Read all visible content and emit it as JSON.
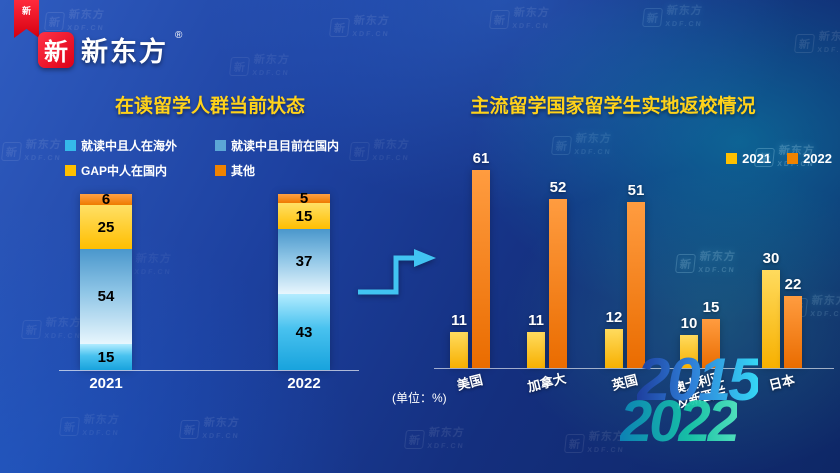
{
  "brand": {
    "seal": "新",
    "name": "新东方",
    "registered": "®"
  },
  "ribbon": {
    "seal": "新"
  },
  "watermark": {
    "seal": "新",
    "line1": "新东方",
    "line2": "XDF.CN"
  },
  "right_chart": {
    "unit_note": "(单位：%)",
    "categories_display": [
      "美国",
      "加拿大",
      "英国",
      "澳大利亚\n及新西兰",
      "日本"
    ]
  },
  "decor": {
    "year_top": "2015",
    "year_bottom": "2022"
  },
  "chart_data": [
    {
      "type": "bar",
      "variant": "stacked",
      "title": "在读留学人群当前状态",
      "categories": [
        "2021",
        "2022"
      ],
      "series": [
        {
          "name": "就读中且人在海外",
          "color": "#35b9ea",
          "values": [
            15,
            43
          ]
        },
        {
          "name": "就读中且目前在国内",
          "color": "#5ba6d6",
          "values": [
            54,
            37
          ]
        },
        {
          "name": "GAP中人在国内",
          "color": "#ffc000",
          "values": [
            25,
            15
          ]
        },
        {
          "name": "其他",
          "color": "#f08300",
          "values": [
            6,
            5
          ]
        }
      ],
      "ylim": [
        0,
        100
      ],
      "legend_position": "top",
      "value_labels": "inside"
    },
    {
      "type": "bar",
      "variant": "grouped",
      "title": "主流留学国家留学生实地返校情况",
      "unit": "%",
      "categories": [
        "美国",
        "加拿大",
        "英国",
        "澳大利亚及新西兰",
        "日本"
      ],
      "series": [
        {
          "name": "2021",
          "color": "#ffc000",
          "values": [
            11,
            11,
            12,
            10,
            30
          ]
        },
        {
          "name": "2022",
          "color": "#f08300",
          "values": [
            61,
            52,
            51,
            15,
            22
          ]
        }
      ],
      "ylim": [
        0,
        65
      ],
      "legend_position": "top-right",
      "value_labels": "above"
    }
  ]
}
